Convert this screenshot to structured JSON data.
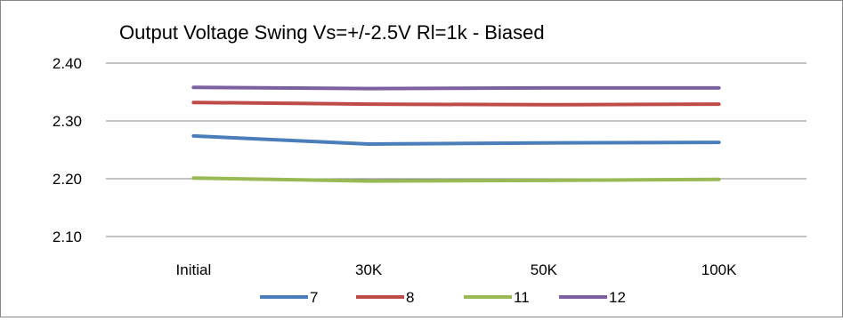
{
  "chart_data": {
    "type": "line",
    "title": "Output Voltage Swing Vs=+/-2.5V Rl=1k - Biased",
    "xlabel": "",
    "ylabel": "",
    "categories": [
      "Initial",
      "30K",
      "50K",
      "100K"
    ],
    "ylim": [
      2.1,
      2.4
    ],
    "yticks": [
      "2.10",
      "2.20",
      "2.30",
      "2.40"
    ],
    "grid": true,
    "legend_position": "bottom",
    "series": [
      {
        "name": "7",
        "color": "#4a7ebb",
        "values": [
          2.274,
          2.26,
          2.262,
          2.263
        ]
      },
      {
        "name": "8",
        "color": "#be4b48",
        "values": [
          2.332,
          2.329,
          2.328,
          2.329
        ]
      },
      {
        "name": "11",
        "color": "#98b954",
        "values": [
          2.201,
          2.196,
          2.197,
          2.199
        ]
      },
      {
        "name": "12",
        "color": "#7d60a0",
        "values": [
          2.358,
          2.356,
          2.357,
          2.357
        ]
      }
    ]
  }
}
